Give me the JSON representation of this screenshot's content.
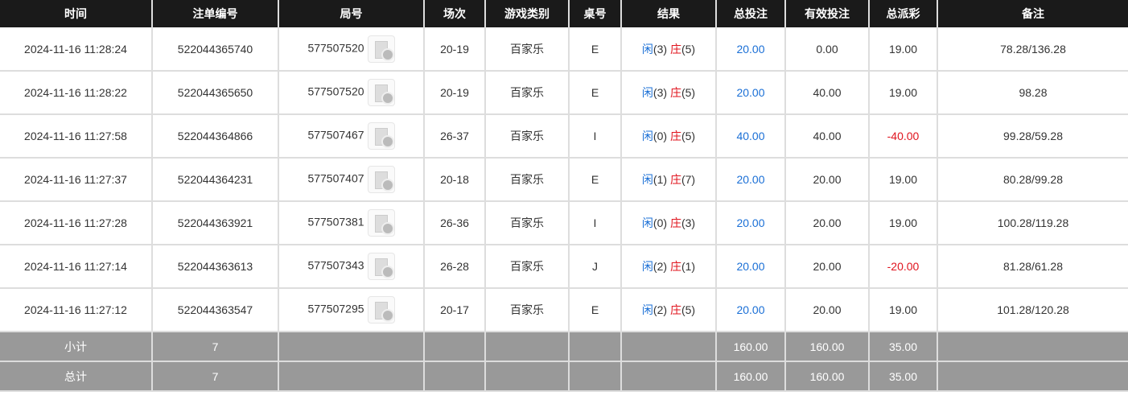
{
  "headers": [
    "时间",
    "注单编号",
    "局号",
    "场次",
    "游戏类别",
    "桌号",
    "结果",
    "总投注",
    "有效投注",
    "总派彩",
    "备注"
  ],
  "rows": [
    {
      "time": "2024-11-16 11:28:24",
      "bet_id": "522044365740",
      "round": "577507520",
      "shoe": "20-19",
      "game": "百家乐",
      "table": "E",
      "player": "闲",
      "player_pts": "(3)",
      "banker": "庄",
      "banker_pts": "(5)",
      "total": "20.00",
      "valid": "0.00",
      "payout": "19.00",
      "payout_neg": false,
      "note": "78.28/136.28"
    },
    {
      "time": "2024-11-16 11:28:22",
      "bet_id": "522044365650",
      "round": "577507520",
      "shoe": "20-19",
      "game": "百家乐",
      "table": "E",
      "player": "闲",
      "player_pts": "(3)",
      "banker": "庄",
      "banker_pts": "(5)",
      "total": "20.00",
      "valid": "40.00",
      "payout": "19.00",
      "payout_neg": false,
      "note": "98.28"
    },
    {
      "time": "2024-11-16 11:27:58",
      "bet_id": "522044364866",
      "round": "577507467",
      "shoe": "26-37",
      "game": "百家乐",
      "table": "I",
      "player": "闲",
      "player_pts": "(0)",
      "banker": "庄",
      "banker_pts": "(5)",
      "total": "40.00",
      "valid": "40.00",
      "payout": "-40.00",
      "payout_neg": true,
      "note": "99.28/59.28"
    },
    {
      "time": "2024-11-16 11:27:37",
      "bet_id": "522044364231",
      "round": "577507407",
      "shoe": "20-18",
      "game": "百家乐",
      "table": "E",
      "player": "闲",
      "player_pts": "(1)",
      "banker": "庄",
      "banker_pts": "(7)",
      "total": "20.00",
      "valid": "20.00",
      "payout": "19.00",
      "payout_neg": false,
      "note": "80.28/99.28"
    },
    {
      "time": "2024-11-16 11:27:28",
      "bet_id": "522044363921",
      "round": "577507381",
      "shoe": "26-36",
      "game": "百家乐",
      "table": "I",
      "player": "闲",
      "player_pts": "(0)",
      "banker": "庄",
      "banker_pts": "(3)",
      "total": "20.00",
      "valid": "20.00",
      "payout": "19.00",
      "payout_neg": false,
      "note": "100.28/119.28"
    },
    {
      "time": "2024-11-16 11:27:14",
      "bet_id": "522044363613",
      "round": "577507343",
      "shoe": "26-28",
      "game": "百家乐",
      "table": "J",
      "player": "闲",
      "player_pts": "(2)",
      "banker": "庄",
      "banker_pts": "(1)",
      "total": "20.00",
      "valid": "20.00",
      "payout": "-20.00",
      "payout_neg": true,
      "note": "81.28/61.28"
    },
    {
      "time": "2024-11-16 11:27:12",
      "bet_id": "522044363547",
      "round": "577507295",
      "shoe": "20-17",
      "game": "百家乐",
      "table": "E",
      "player": "闲",
      "player_pts": "(2)",
      "banker": "庄",
      "banker_pts": "(5)",
      "total": "20.00",
      "valid": "20.00",
      "payout": "19.00",
      "payout_neg": false,
      "note": "101.28/120.28"
    }
  ],
  "summary": [
    {
      "label": "小计",
      "count": "7",
      "total": "160.00",
      "valid": "160.00",
      "payout": "35.00"
    },
    {
      "label": "总计",
      "count": "7",
      "total": "160.00",
      "valid": "160.00",
      "payout": "35.00"
    }
  ],
  "colors": {
    "player": "#1a6fd6",
    "banker": "#e0141e",
    "header_bg": "#1a1a1a",
    "summary_bg": "#999999"
  }
}
